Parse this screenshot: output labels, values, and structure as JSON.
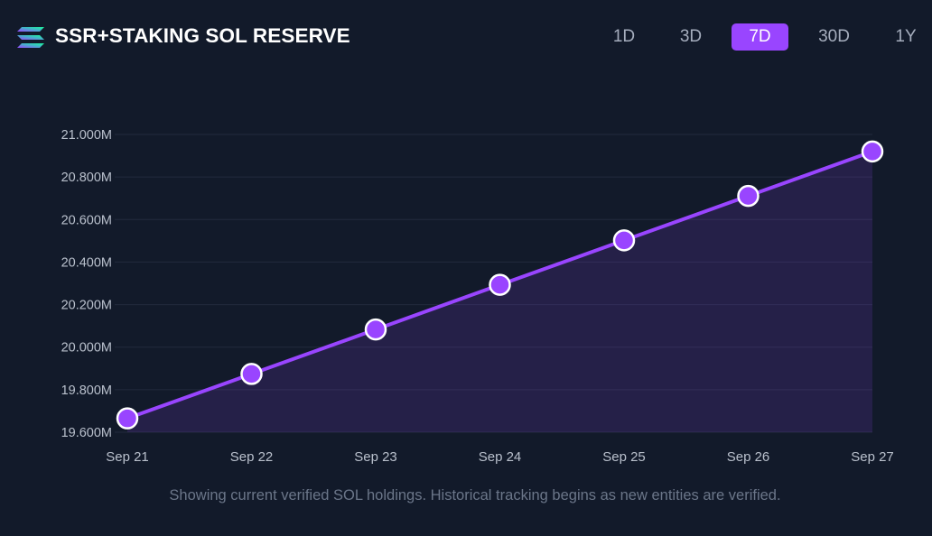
{
  "header": {
    "title": "SSR+STAKING SOL RESERVE",
    "logo_icon": "solana-logo-icon"
  },
  "ranges": [
    {
      "label": "1D",
      "active": false
    },
    {
      "label": "3D",
      "active": false
    },
    {
      "label": "7D",
      "active": true
    },
    {
      "label": "30D",
      "active": false
    },
    {
      "label": "1Y",
      "active": false
    }
  ],
  "colors": {
    "background": "#121a2a",
    "accent": "#9945ff",
    "grid": "#222b3d",
    "axis_text": "#b9c0cc",
    "footnote": "#6b7689"
  },
  "chart_data": {
    "type": "area",
    "title": "SSR+STAKING SOL RESERVE",
    "xlabel": "",
    "ylabel": "",
    "categories": [
      "Sep 21",
      "Sep 22",
      "Sep 23",
      "Sep 24",
      "Sep 25",
      "Sep 26",
      "Sep 27"
    ],
    "series": [
      {
        "name": "SOL holdings",
        "values": [
          19.665,
          19.874,
          20.083,
          20.293,
          20.502,
          20.711,
          20.92
        ]
      }
    ],
    "y_ticks": [
      19.6,
      19.8,
      20.0,
      20.2,
      20.4,
      20.6,
      20.8,
      21.0
    ],
    "y_tick_labels": [
      "19.600M",
      "19.800M",
      "20.000M",
      "20.200M",
      "20.400M",
      "20.600M",
      "20.800M",
      "21.000M"
    ],
    "ylim": [
      19.6,
      21.0
    ],
    "grid": true,
    "legend": "none"
  },
  "footnote": "Showing current verified SOL holdings. Historical tracking begins as new entities are verified."
}
